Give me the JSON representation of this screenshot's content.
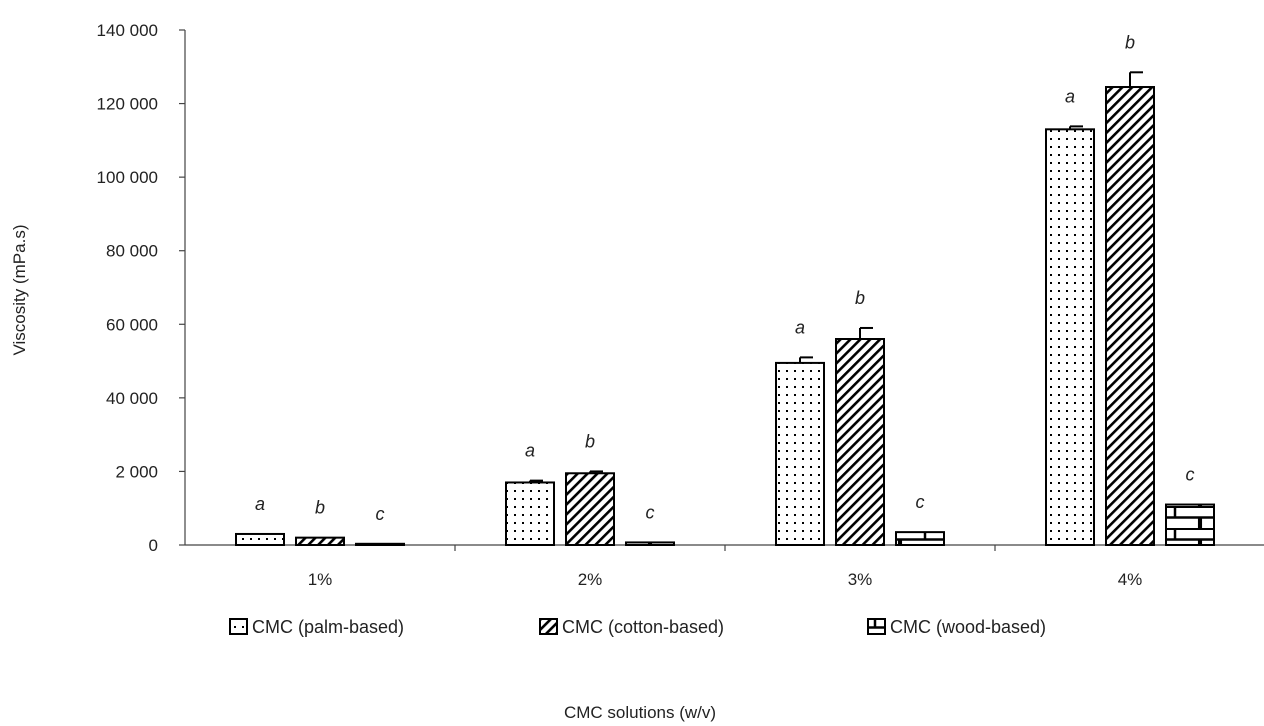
{
  "chart_data": {
    "type": "bar",
    "xlabel": "CMC solutions (w/v)",
    "ylabel": "Viscosity (mPa.s)",
    "categories": [
      "1%",
      "2%",
      "3%",
      "4%"
    ],
    "y_ticks": [
      "0",
      "2 000",
      "40 000",
      "60 000",
      "80 000",
      "100 000",
      "120 000",
      "140 000"
    ],
    "ylim": [
      0,
      140000
    ],
    "grid": false,
    "legend_position": "bottom",
    "series": [
      {
        "name": "CMC (palm-based)",
        "pattern": "dots",
        "values": [
          300,
          1700,
          49500,
          113000
        ],
        "errors": [
          0,
          50,
          1500,
          800
        ],
        "sig_labels": [
          "a",
          "a",
          "a",
          "a"
        ]
      },
      {
        "name": "CMC (cotton-based)",
        "pattern": "diagonal",
        "values": [
          200,
          1950,
          56000,
          124500
        ],
        "errors": [
          0,
          50,
          3000,
          4000
        ],
        "sig_labels": [
          "b",
          "b",
          "b",
          "b"
        ]
      },
      {
        "name": "CMC (wood-based)",
        "pattern": "brick",
        "values": [
          0,
          70,
          350,
          1100
        ],
        "errors": [
          0,
          0,
          0,
          0
        ],
        "sig_labels": [
          "c",
          "c",
          "c",
          "c"
        ]
      }
    ],
    "colors": {
      "stroke": "#000000",
      "fill": "#ffffff",
      "text": "#222222"
    }
  }
}
